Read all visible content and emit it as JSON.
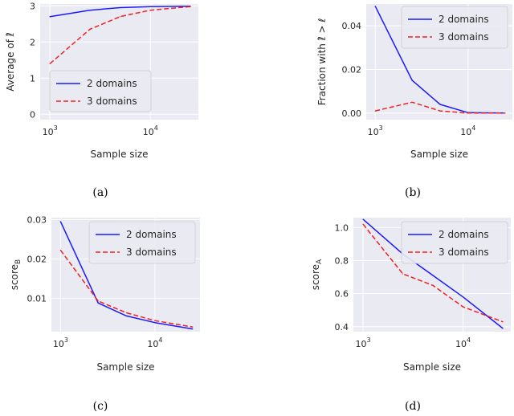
{
  "chart_data": [
    {
      "type": "line",
      "caption": "(a)",
      "xlabel": "Sample size",
      "ylabel": "Average of ℓ̂",
      "xscale": "log",
      "xlim": [
        800,
        30000
      ],
      "ylim": [
        -0.15,
        3.05
      ],
      "xticks": [
        {
          "v": 1000,
          "base": "10",
          "exp": "3"
        },
        {
          "v": 10000,
          "base": "10",
          "exp": "4"
        }
      ],
      "yticks": [
        {
          "v": 0,
          "label": "0"
        },
        {
          "v": 1,
          "label": "1"
        },
        {
          "v": 2,
          "label": "2"
        },
        {
          "v": 3,
          "label": "3"
        }
      ],
      "legend_position": "lower-left",
      "series": [
        {
          "name": "2 domains",
          "color": "#1a1aff",
          "dash": "solid",
          "x": [
            1000,
            2500,
            5000,
            10000,
            25000
          ],
          "y": [
            2.7,
            2.88,
            2.95,
            2.98,
            2.99
          ]
        },
        {
          "name": "3 domains",
          "color": "#ee2222",
          "dash": "dashed",
          "x": [
            1000,
            2500,
            5000,
            10000,
            25000
          ],
          "y": [
            1.4,
            2.35,
            2.7,
            2.88,
            2.98
          ]
        }
      ]
    },
    {
      "type": "line",
      "caption": "(b)",
      "xlabel": "Sample size",
      "ylabel": "Fraction with ℓ̂ > ℓ",
      "xscale": "log",
      "xlim": [
        800,
        30000
      ],
      "ylim": [
        -0.003,
        0.05
      ],
      "xticks": [
        {
          "v": 1000,
          "base": "10",
          "exp": "3"
        },
        {
          "v": 10000,
          "base": "10",
          "exp": "4"
        }
      ],
      "yticks": [
        {
          "v": 0,
          "label": "0.00"
        },
        {
          "v": 0.02,
          "label": "0.02"
        },
        {
          "v": 0.04,
          "label": "0.04"
        }
      ],
      "legend_position": "top-right",
      "series": [
        {
          "name": "2 domains",
          "color": "#1a1aff",
          "dash": "solid",
          "x": [
            1000,
            2500,
            5000,
            10000,
            25000
          ],
          "y": [
            0.049,
            0.015,
            0.004,
            0.0002,
            0.0
          ]
        },
        {
          "name": "3 domains",
          "color": "#ee2222",
          "dash": "dashed",
          "x": [
            1000,
            2500,
            5000,
            10000,
            25000
          ],
          "y": [
            0.001,
            0.005,
            0.001,
            0.0,
            0.0
          ]
        }
      ]
    },
    {
      "type": "line",
      "caption": "(c)",
      "xlabel": "Sample size",
      "ylabel": "score_B",
      "ylabel_main": "score",
      "ylabel_sub": "B",
      "xscale": "log",
      "xlim": [
        800,
        30000
      ],
      "ylim": [
        0.0015,
        0.0305
      ],
      "xticks": [
        {
          "v": 1000,
          "base": "10",
          "exp": "3"
        },
        {
          "v": 10000,
          "base": "10",
          "exp": "4"
        }
      ],
      "yticks": [
        {
          "v": 0.01,
          "label": "0.01"
        },
        {
          "v": 0.02,
          "label": "0.02"
        },
        {
          "v": 0.03,
          "label": "0.03"
        }
      ],
      "legend_position": "top-right",
      "series": [
        {
          "name": "2 domains",
          "color": "#1a1aff",
          "dash": "solid",
          "x": [
            1000,
            2500,
            5000,
            10000,
            25000
          ],
          "y": [
            0.0295,
            0.0088,
            0.0055,
            0.0038,
            0.0022
          ]
        },
        {
          "name": "3 domains",
          "color": "#ee2222",
          "dash": "dashed",
          "x": [
            1000,
            2500,
            5000,
            10000,
            25000
          ],
          "y": [
            0.0222,
            0.0093,
            0.0063,
            0.0043,
            0.0027
          ]
        }
      ]
    },
    {
      "type": "line",
      "caption": "(d)",
      "xlabel": "Sample size",
      "ylabel": "score_A",
      "ylabel_main": "score",
      "ylabel_sub": "A",
      "xscale": "log",
      "xlim": [
        800,
        30000
      ],
      "ylim": [
        0.37,
        1.06
      ],
      "xticks": [
        {
          "v": 1000,
          "base": "10",
          "exp": "3"
        },
        {
          "v": 10000,
          "base": "10",
          "exp": "4"
        }
      ],
      "yticks": [
        {
          "v": 0.4,
          "label": "0.4"
        },
        {
          "v": 0.6,
          "label": "0.6"
        },
        {
          "v": 0.8,
          "label": "0.8"
        },
        {
          "v": 1.0,
          "label": "1.0"
        }
      ],
      "legend_position": "top-right",
      "series": [
        {
          "name": "2 domains",
          "color": "#1a1aff",
          "dash": "solid",
          "x": [
            1000,
            2500,
            5000,
            10000,
            25000
          ],
          "y": [
            1.05,
            0.84,
            0.71,
            0.58,
            0.39
          ]
        },
        {
          "name": "3 domains",
          "color": "#ee2222",
          "dash": "dashed",
          "x": [
            1000,
            2500,
            5000,
            10000,
            25000
          ],
          "y": [
            1.02,
            0.72,
            0.65,
            0.52,
            0.43
          ]
        }
      ]
    }
  ]
}
